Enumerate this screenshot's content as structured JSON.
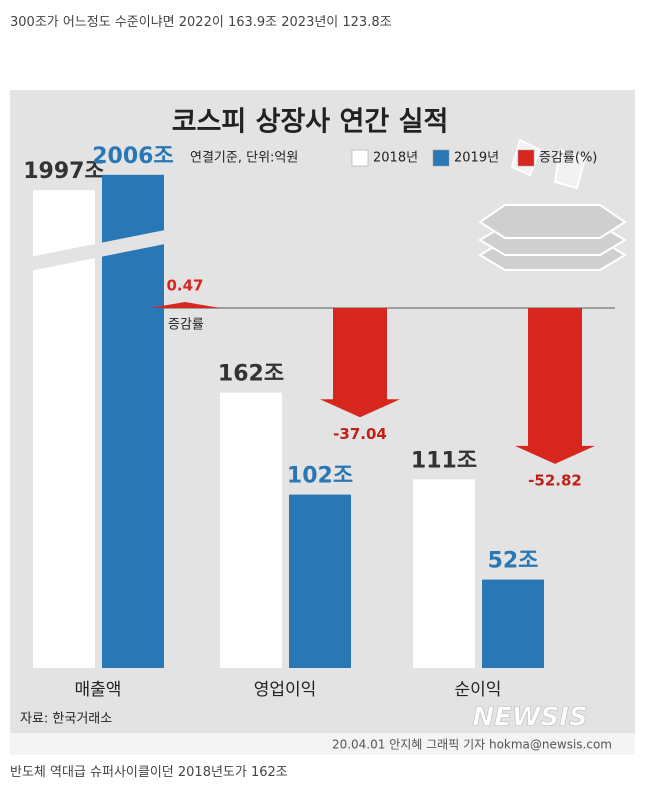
{
  "top_caption": "300조가 어느정도 수준이냐면 2022이 163.9조 2023년이 123.8조",
  "bottom_caption": "반도체 역대급 슈퍼사이클이던 2018년도가 162조",
  "chart_data": {
    "type": "bar",
    "title": "코스피 상장사 연간 실적",
    "subtitle": "연결기준, 단위:억원",
    "categories": [
      "매출액",
      "영업이익",
      "순이익"
    ],
    "series": [
      {
        "name": "2018년",
        "color": "#ffffff",
        "values": [
          1997,
          162,
          111
        ],
        "value_labels": [
          "1997조",
          "162조",
          "111조"
        ]
      },
      {
        "name": "2019년",
        "color": "#2a77b6",
        "values": [
          2006,
          102,
          52
        ],
        "value_labels": [
          "2006조",
          "102조",
          "52조"
        ]
      },
      {
        "name": "증감률(%)",
        "color": "#d7261e",
        "values": [
          0.47,
          -37.04,
          -52.82
        ]
      }
    ],
    "annotation": "증감률",
    "source": "자료: 한국거래소",
    "credit": "20.04.01 안지혜 그래픽 기자 hokma@newsis.com",
    "watermark": "NEWSIS"
  }
}
